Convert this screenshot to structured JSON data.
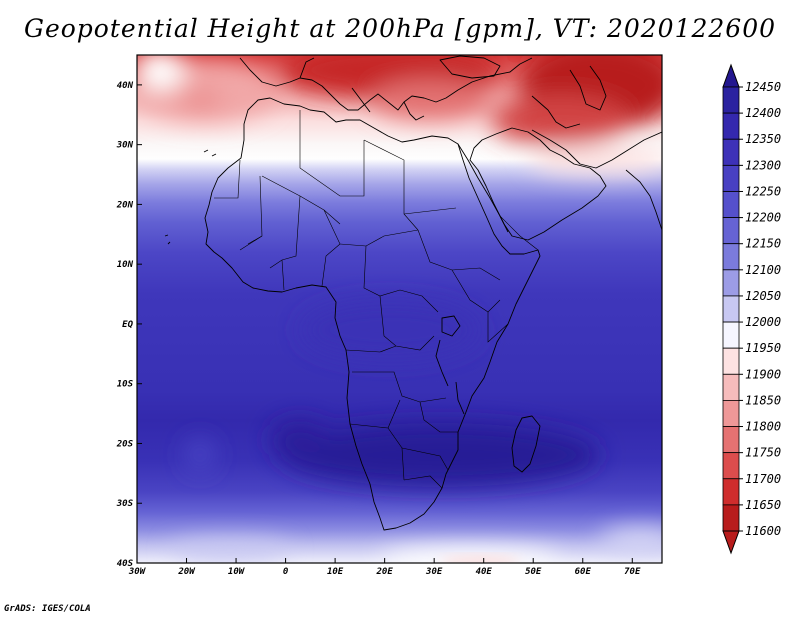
{
  "title": "Geopotential Height at 200hPa [gpm], VT: 2020122600",
  "credit": "GrADS: IGES/COLA",
  "map": {
    "lon_range": [
      -30,
      76
    ],
    "lat_range": [
      -40,
      45
    ],
    "lon_ticks": [
      "30W",
      "20W",
      "10W",
      "0",
      "10E",
      "20E",
      "30E",
      "40E",
      "50E",
      "60E",
      "70E"
    ],
    "lat_ticks": [
      "40N",
      "30N",
      "20N",
      "10N",
      "EQ",
      "10S",
      "20S",
      "30S",
      "40S"
    ]
  },
  "colorbar": {
    "labels": [
      "12450",
      "12400",
      "12350",
      "12300",
      "12250",
      "12200",
      "12150",
      "12100",
      "12050",
      "12000",
      "11950",
      "11900",
      "11850",
      "11800",
      "11750",
      "11700",
      "11650",
      "11600"
    ],
    "colors": [
      "#23178f",
      "#2b22a0",
      "#3428ae",
      "#3d31b8",
      "#4840c2",
      "#5550cc",
      "#6663d4",
      "#7b7bdc",
      "#9c9ce6",
      "#c8c8f2",
      "#f6f6ff",
      "#fde2e2",
      "#f6bcbc",
      "#ee9898",
      "#e57272",
      "#dc4d4d",
      "#cf2d2d",
      "#b81c1c"
    ]
  }
}
